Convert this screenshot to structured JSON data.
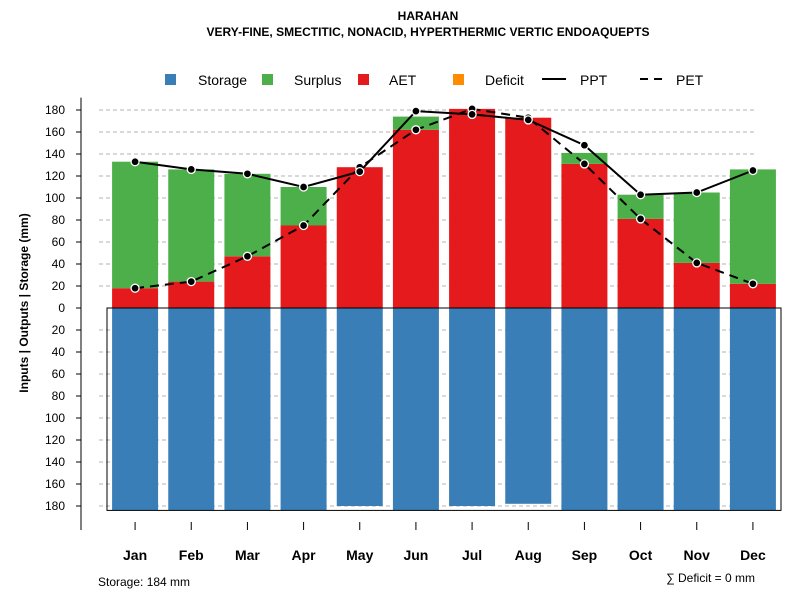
{
  "colors": {
    "storage": "#3A7EB8",
    "surplus": "#4DAF4A",
    "aet": "#E41A1C",
    "deficit": "#FF8C00",
    "line": "#000000",
    "grid": "#b3b3b3"
  },
  "chart_data": {
    "type": "bar",
    "title": "HARAHAN",
    "subtitle": "VERY-FINE, SMECTITIC, NONACID, HYPERTHERMIC VERTIC ENDOAQUEPTS",
    "ylabel": "Inputs | Outputs | Storage    (mm)",
    "ylim": [
      -184,
      184
    ],
    "ytick_values": [
      180,
      160,
      140,
      120,
      100,
      80,
      60,
      40,
      20,
      0,
      -20,
      -40,
      -60,
      -80,
      -100,
      -120,
      -140,
      -160,
      -180
    ],
    "ytick_labels": [
      "180",
      "160",
      "140",
      "120",
      "100",
      "80",
      "60",
      "40",
      "20",
      "0",
      "20",
      "40",
      "60",
      "80",
      "100",
      "120",
      "140",
      "160",
      "180"
    ],
    "categories": [
      "Jan",
      "Feb",
      "Mar",
      "Apr",
      "May",
      "Jun",
      "Jul",
      "Aug",
      "Sep",
      "Oct",
      "Nov",
      "Dec"
    ],
    "legend": [
      "Storage",
      "Surplus",
      "AET",
      "Deficit",
      "PPT",
      "PET"
    ],
    "series": [
      {
        "name": "Storage",
        "kind": "bar-below",
        "values": [
          184,
          184,
          184,
          184,
          180,
          184,
          180,
          178,
          184,
          184,
          184,
          184
        ]
      },
      {
        "name": "AET",
        "kind": "bar-stack",
        "values": [
          18,
          24,
          47,
          75,
          128,
          162,
          181,
          173,
          131,
          81,
          41,
          22
        ]
      },
      {
        "name": "Surplus",
        "kind": "bar-stack",
        "values": [
          115,
          102,
          75,
          35,
          0,
          12,
          0,
          0,
          10,
          22,
          64,
          104
        ]
      },
      {
        "name": "Deficit",
        "kind": "bar-stack",
        "values": [
          0,
          0,
          0,
          0,
          0,
          0,
          0,
          0,
          0,
          0,
          0,
          0
        ]
      },
      {
        "name": "PPT",
        "kind": "line-solid",
        "values": [
          133,
          126,
          122,
          110,
          124,
          179,
          176,
          171,
          148,
          103,
          105,
          125
        ]
      },
      {
        "name": "PET",
        "kind": "line-dashed",
        "values": [
          18,
          24,
          47,
          75,
          128,
          162,
          181,
          173,
          131,
          81,
          41,
          22
        ]
      }
    ],
    "storage_note": "Storage: 184 mm",
    "deficit_note": "∑ Deficit = 0 mm"
  }
}
